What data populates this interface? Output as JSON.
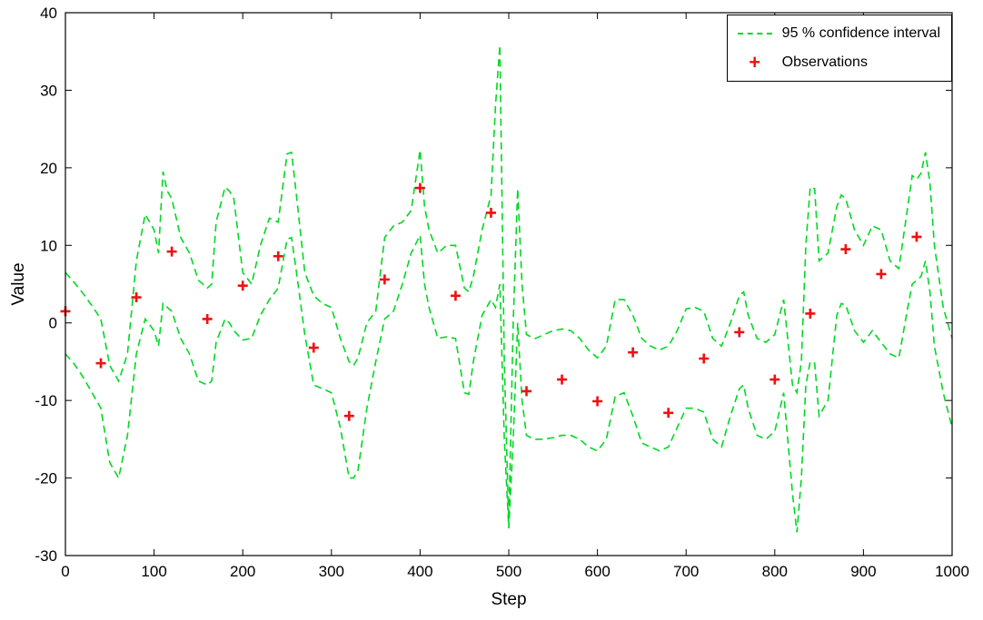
{
  "chart_data": {
    "type": "line",
    "title": "",
    "xlabel": "Step",
    "ylabel": "Value",
    "xlim": [
      0,
      1000
    ],
    "ylim": [
      -30,
      40
    ],
    "xticks": [
      0,
      100,
      200,
      300,
      400,
      500,
      600,
      700,
      800,
      900,
      1000
    ],
    "yticks": [
      -30,
      -20,
      -10,
      0,
      10,
      20,
      30,
      40
    ],
    "grid": false,
    "colors": {
      "ci": "#00d822",
      "obs": "#ee1111",
      "axis": "#000000",
      "background": "#ffffff"
    },
    "legend": {
      "position": "top-right",
      "entries": [
        {
          "label": "95 % confidence interval",
          "marker": "dashed-line",
          "color": "#00d822"
        },
        {
          "label": "Observations",
          "marker": "plus",
          "color": "#ee1111"
        }
      ]
    },
    "ci_x": [
      0,
      10,
      20,
      30,
      40,
      50,
      60,
      70,
      80,
      90,
      100,
      105,
      110,
      115,
      120,
      130,
      140,
      150,
      160,
      165,
      170,
      180,
      185,
      190,
      200,
      210,
      220,
      230,
      240,
      250,
      255,
      260,
      270,
      280,
      290,
      300,
      310,
      320,
      325,
      330,
      340,
      350,
      360,
      370,
      380,
      390,
      400,
      405,
      410,
      420,
      430,
      440,
      450,
      455,
      460,
      470,
      480,
      485,
      490,
      495,
      500,
      505,
      510,
      515,
      520,
      525,
      530,
      540,
      550,
      560,
      570,
      580,
      590,
      600,
      610,
      620,
      630,
      640,
      650,
      660,
      670,
      680,
      690,
      700,
      710,
      720,
      730,
      740,
      750,
      760,
      765,
      770,
      780,
      790,
      800,
      810,
      820,
      825,
      830,
      835,
      840,
      845,
      850,
      860,
      870,
      875,
      880,
      890,
      900,
      910,
      920,
      930,
      940,
      950,
      955,
      960,
      965,
      970,
      975,
      980,
      990,
      1000
    ],
    "ci_upper": [
      6.5,
      5.2,
      3.8,
      2.2,
      0.5,
      -5.5,
      -7.5,
      -4,
      8,
      14,
      12,
      9,
      19.5,
      17,
      16,
      11,
      9,
      5.5,
      4.5,
      5,
      13,
      17.5,
      17,
      16,
      6.5,
      5,
      10,
      13.5,
      13,
      21.8,
      22,
      17,
      6.5,
      3.5,
      2.5,
      2,
      -2,
      -5,
      -5.5,
      -4.5,
      0,
      1.5,
      11,
      12.5,
      13,
      14.5,
      22.3,
      15,
      12,
      9,
      10,
      10,
      4.5,
      4,
      6,
      12,
      16.5,
      28,
      35.8,
      -5,
      -26,
      0,
      17.3,
      5,
      -1.5,
      -1.8,
      -2,
      -1.5,
      -1,
      -0.8,
      -1,
      -2,
      -3.5,
      -4.5,
      -3,
      3,
      3,
      1,
      -2,
      -3,
      -3.5,
      -3,
      -1,
      1.8,
      2,
      1.5,
      -2,
      -3,
      0,
      3.5,
      4,
      1,
      -2,
      -2.5,
      -1.5,
      3,
      -8,
      -9,
      -5,
      10,
      17.5,
      17.3,
      8,
      9,
      15,
      16.5,
      16,
      12,
      10,
      12.5,
      12,
      8,
      7,
      15,
      19,
      18.5,
      19.3,
      22,
      18,
      10,
      2,
      -2
    ],
    "ci_lower": [
      -4,
      -5.3,
      -7,
      -9,
      -11,
      -18,
      -20,
      -14.5,
      -4,
      0.5,
      -1,
      -3,
      2.5,
      2,
      1.5,
      -2,
      -4,
      -7.5,
      -8,
      -7.5,
      -2.5,
      0.5,
      0,
      -1,
      -2.2,
      -2,
      1,
      3,
      4.5,
      10.8,
      11,
      7,
      -1.5,
      -8,
      -8.5,
      -9,
      -13.5,
      -20,
      -20,
      -19,
      -11,
      -5,
      0.5,
      1.5,
      5,
      9,
      11.3,
      5,
      2,
      -2,
      -1.8,
      -2,
      -9,
      -9.2,
      -5,
      1,
      3,
      2,
      5,
      -15,
      -26.5,
      -15,
      0,
      -10,
      -14.5,
      -14.8,
      -15,
      -15,
      -14.8,
      -14.5,
      -14.5,
      -15,
      -16,
      -16.5,
      -15,
      -9.5,
      -9,
      -12,
      -15.5,
      -16,
      -16.5,
      -16,
      -13.5,
      -11,
      -11,
      -11.5,
      -15,
      -16,
      -12,
      -8.5,
      -8,
      -11,
      -14.5,
      -15,
      -14,
      -9,
      -22,
      -27,
      -20,
      -8,
      -5,
      -5.2,
      -12,
      -10,
      1,
      2.5,
      2.3,
      -1,
      -2.5,
      -1,
      -2.5,
      -4,
      -4.5,
      2,
      5,
      5.5,
      6,
      8,
      4,
      -3,
      -9,
      -13.5
    ],
    "observations": {
      "x": [
        0,
        40,
        80,
        120,
        160,
        200,
        240,
        280,
        320,
        360,
        400,
        440,
        480,
        520,
        560,
        600,
        640,
        680,
        720,
        760,
        800,
        840,
        880,
        920,
        960
      ],
      "y": [
        1.5,
        -5.2,
        3.3,
        9.2,
        0.5,
        4.8,
        8.6,
        -3.2,
        -12,
        5.6,
        17.4,
        3.5,
        14.2,
        -8.8,
        -7.3,
        -10.1,
        -3.8,
        -11.6,
        -4.6,
        -1.2,
        -7.3,
        1.2,
        9.5,
        6.3,
        11.1
      ]
    }
  }
}
